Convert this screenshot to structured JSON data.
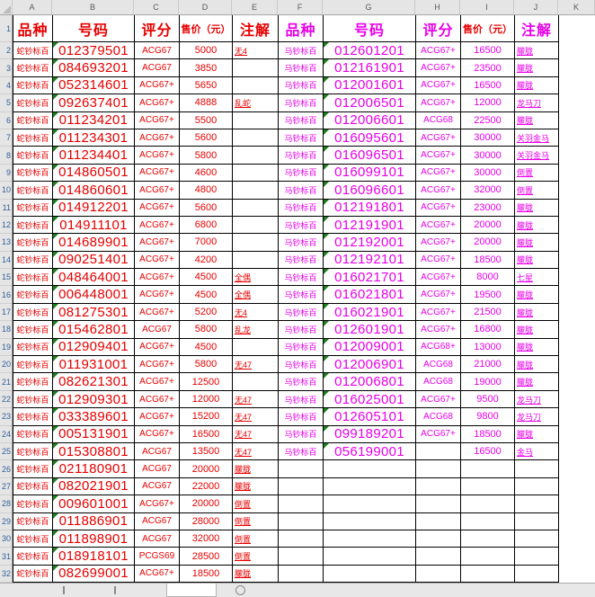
{
  "sheet": {
    "column_letters": [
      "A",
      "B",
      "C",
      "D",
      "E",
      "F",
      "G",
      "H",
      "I",
      "J",
      "K"
    ],
    "row_numbers": [
      "1",
      "2",
      "3",
      "4",
      "5",
      "6",
      "7",
      "8",
      "9",
      "10",
      "11",
      "12",
      "13",
      "14",
      "15",
      "16",
      "17",
      "18",
      "19",
      "20",
      "21",
      "22",
      "23",
      "24",
      "25",
      "26",
      "27",
      "28",
      "29",
      "30",
      "31",
      "32"
    ]
  },
  "left_table": {
    "headers": {
      "variety": "品种",
      "number": "号码",
      "grade": "评分",
      "price": "售价（元）",
      "note": "注解"
    },
    "rows": [
      {
        "variety": "蛇钞标百",
        "number": "012379501",
        "grade": "ACG67",
        "price": "5000",
        "note": "无4"
      },
      {
        "variety": "蛇钞标百",
        "number": "084693201",
        "grade": "ACG67",
        "price": "3850",
        "note": ""
      },
      {
        "variety": "蛇钞标百",
        "number": "052314601",
        "grade": "ACG67+",
        "price": "5650",
        "note": ""
      },
      {
        "variety": "蛇钞标百",
        "number": "092637401",
        "grade": "ACG67+",
        "price": "4888",
        "note": "乱蛇"
      },
      {
        "variety": "蛇钞标百",
        "number": "011234201",
        "grade": "ACG67+",
        "price": "5500",
        "note": ""
      },
      {
        "variety": "蛇钞标百",
        "number": "011234301",
        "grade": "ACG67+",
        "price": "5600",
        "note": ""
      },
      {
        "variety": "蛇钞标百",
        "number": "011234401",
        "grade": "ACG67+",
        "price": "5800",
        "note": ""
      },
      {
        "variety": "蛇钞标百",
        "number": "014860501",
        "grade": "ACG67+",
        "price": "4600",
        "note": ""
      },
      {
        "variety": "蛇钞标百",
        "number": "014860601",
        "grade": "ACG67+",
        "price": "4800",
        "note": ""
      },
      {
        "variety": "蛇钞标百",
        "number": "014912201",
        "grade": "ACG67+",
        "price": "5600",
        "note": ""
      },
      {
        "variety": "蛇钞标百",
        "number": "014911101",
        "grade": "ACG67+",
        "price": "6800",
        "note": ""
      },
      {
        "variety": "蛇钞标百",
        "number": "014689901",
        "grade": "ACG67+",
        "price": "7000",
        "note": ""
      },
      {
        "variety": "蛇钞标百",
        "number": "090251401",
        "grade": "ACG67+",
        "price": "4200",
        "note": ""
      },
      {
        "variety": "蛇钞标百",
        "number": "048464001",
        "grade": "ACG67+",
        "price": "4500",
        "note": "全偶"
      },
      {
        "variety": "蛇钞标百",
        "number": "006448001",
        "grade": "ACG67+",
        "price": "4500",
        "note": "全偶"
      },
      {
        "variety": "蛇钞标百",
        "number": "081275301",
        "grade": "ACG67+",
        "price": "5200",
        "note": "无4"
      },
      {
        "variety": "蛇钞标百",
        "number": "015462801",
        "grade": "ACG67",
        "price": "5800",
        "note": "乱龙"
      },
      {
        "variety": "蛇钞标百",
        "number": "012909401",
        "grade": "ACG67+",
        "price": "4500",
        "note": ""
      },
      {
        "variety": "蛇钞标百",
        "number": "011931001",
        "grade": "ACG67+",
        "price": "5800",
        "note": "无47"
      },
      {
        "variety": "蛇钞标百",
        "number": "082621301",
        "grade": "ACG67+",
        "price": "12500",
        "note": ""
      },
      {
        "variety": "蛇钞标百",
        "number": "012909301",
        "grade": "ACG67+",
        "price": "12000",
        "note": "无47"
      },
      {
        "variety": "蛇钞标百",
        "number": "033389601",
        "grade": "ACG67+",
        "price": "15200",
        "note": "无47"
      },
      {
        "variety": "蛇钞标百",
        "number": "005131901",
        "grade": "ACG67+",
        "price": "16500",
        "note": "无47"
      },
      {
        "variety": "蛇钞标百",
        "number": "015308801",
        "grade": "ACG67",
        "price": "13500",
        "note": "无47"
      },
      {
        "variety": "蛇钞标百",
        "number": "021180901",
        "grade": "ACG67",
        "price": "20000",
        "note": "朦胧"
      },
      {
        "variety": "蛇钞标百",
        "number": "082021901",
        "grade": "ACG67",
        "price": "22000",
        "note": "朦胧"
      },
      {
        "variety": "蛇钞标百",
        "number": "009601001",
        "grade": "ACG67+",
        "price": "20000",
        "note": "倒置"
      },
      {
        "variety": "蛇钞标百",
        "number": "011886901",
        "grade": "ACG67",
        "price": "28000",
        "note": "倒置"
      },
      {
        "variety": "蛇钞标百",
        "number": "011898901",
        "grade": "ACG67",
        "price": "32000",
        "note": "倒置"
      },
      {
        "variety": "蛇钞标百",
        "number": "018918101",
        "grade": "PCGS69",
        "price": "28500",
        "note": "倒置"
      },
      {
        "variety": "蛇钞标百",
        "number": "082699001",
        "grade": "ACG67+",
        "price": "18500",
        "note": "朦胧"
      }
    ]
  },
  "right_table": {
    "headers": {
      "variety": "品种",
      "number": "号码",
      "grade": "评分",
      "price": "售价（元）",
      "note": "注解"
    },
    "rows": [
      {
        "variety": "马钞标百",
        "number": "012601201",
        "grade": "ACG67+",
        "price": "16500",
        "note": "朦胧"
      },
      {
        "variety": "马钞标百",
        "number": "012161901",
        "grade": "ACG67+",
        "price": "23500",
        "note": "朦胧"
      },
      {
        "variety": "马钞标百",
        "number": "012001601",
        "grade": "ACG67+",
        "price": "16500",
        "note": "朦胧"
      },
      {
        "variety": "马钞标百",
        "number": "012006501",
        "grade": "ACG67+",
        "price": "12000",
        "note": "龙马刀"
      },
      {
        "variety": "马钞标百",
        "number": "012006601",
        "grade": "ACG68",
        "price": "22500",
        "note": "朦胧"
      },
      {
        "variety": "马钞标百",
        "number": "016095601",
        "grade": "ACG67+",
        "price": "30000",
        "note": "关羽金马"
      },
      {
        "variety": "马钞标百",
        "number": "016096501",
        "grade": "ACG67+",
        "price": "30000",
        "note": "关羽金马"
      },
      {
        "variety": "马钞标百",
        "number": "016099101",
        "grade": "ACG67+",
        "price": "30000",
        "note": "倒置"
      },
      {
        "variety": "马钞标百",
        "number": "016096601",
        "grade": "ACG67+",
        "price": "32000",
        "note": "倒置"
      },
      {
        "variety": "马钞标百",
        "number": "012191801",
        "grade": "ACG67+",
        "price": "23000",
        "note": "朦胧"
      },
      {
        "variety": "马钞标百",
        "number": "012191901",
        "grade": "ACG67+",
        "price": "20000",
        "note": "朦胧"
      },
      {
        "variety": "马钞标百",
        "number": "012192001",
        "grade": "ACG67+",
        "price": "20000",
        "note": "朦胧"
      },
      {
        "variety": "马钞标百",
        "number": "012192101",
        "grade": "ACG67+",
        "price": "18500",
        "note": "朦胧"
      },
      {
        "variety": "马钞标百",
        "number": "016021701",
        "grade": "ACG67+",
        "price": "8000",
        "note": "七星"
      },
      {
        "variety": "马钞标百",
        "number": "016021801",
        "grade": "ACG67+",
        "price": "19500",
        "note": "朦胧"
      },
      {
        "variety": "马钞标百",
        "number": "016021901",
        "grade": "ACG67+",
        "price": "21500",
        "note": "朦胧"
      },
      {
        "variety": "马钞标百",
        "number": "012601901",
        "grade": "ACG67+",
        "price": "16800",
        "note": "朦胧"
      },
      {
        "variety": "马钞标百",
        "number": "012009001",
        "grade": "ACG68+",
        "price": "13000",
        "note": "朦胧"
      },
      {
        "variety": "马钞标百",
        "number": "012006901",
        "grade": "ACG68",
        "price": "21000",
        "note": "朦胧"
      },
      {
        "variety": "马钞标百",
        "number": "012006801",
        "grade": "ACG68",
        "price": "19000",
        "note": "朦胧"
      },
      {
        "variety": "马钞标百",
        "number": "016025001",
        "grade": "ACG67+",
        "price": "9500",
        "note": "龙马刀"
      },
      {
        "variety": "马钞标百",
        "number": "012605101",
        "grade": "ACG68",
        "price": "9800",
        "note": "龙马刀"
      },
      {
        "variety": "马钞标百",
        "number": "099189201",
        "grade": "ACG67+",
        "price": "18500",
        "note": "朦胧"
      },
      {
        "variety": "马钞标百",
        "number": "056199001",
        "grade": "",
        "price": "16500",
        "note": "金马"
      },
      {
        "variety": "",
        "number": "",
        "grade": "",
        "price": "",
        "note": ""
      },
      {
        "variety": "",
        "number": "",
        "grade": "",
        "price": "",
        "note": ""
      },
      {
        "variety": "",
        "number": "",
        "grade": "",
        "price": "",
        "note": ""
      },
      {
        "variety": "",
        "number": "",
        "grade": "",
        "price": "",
        "note": ""
      },
      {
        "variety": "",
        "number": "",
        "grade": "",
        "price": "",
        "note": ""
      },
      {
        "variety": "",
        "number": "",
        "grade": "",
        "price": "",
        "note": ""
      },
      {
        "variety": "",
        "number": "",
        "grade": "",
        "price": "",
        "note": ""
      }
    ]
  },
  "colors": {
    "left_header": "#e60000",
    "right_header": "#e800e8",
    "price_header": "#e60000",
    "grid_border": "#000000",
    "triangle": "#1e7e1e",
    "row_number": "#31609b",
    "band_bg": "#e5e5e5",
    "bar_bg": "#e8e8e8"
  }
}
